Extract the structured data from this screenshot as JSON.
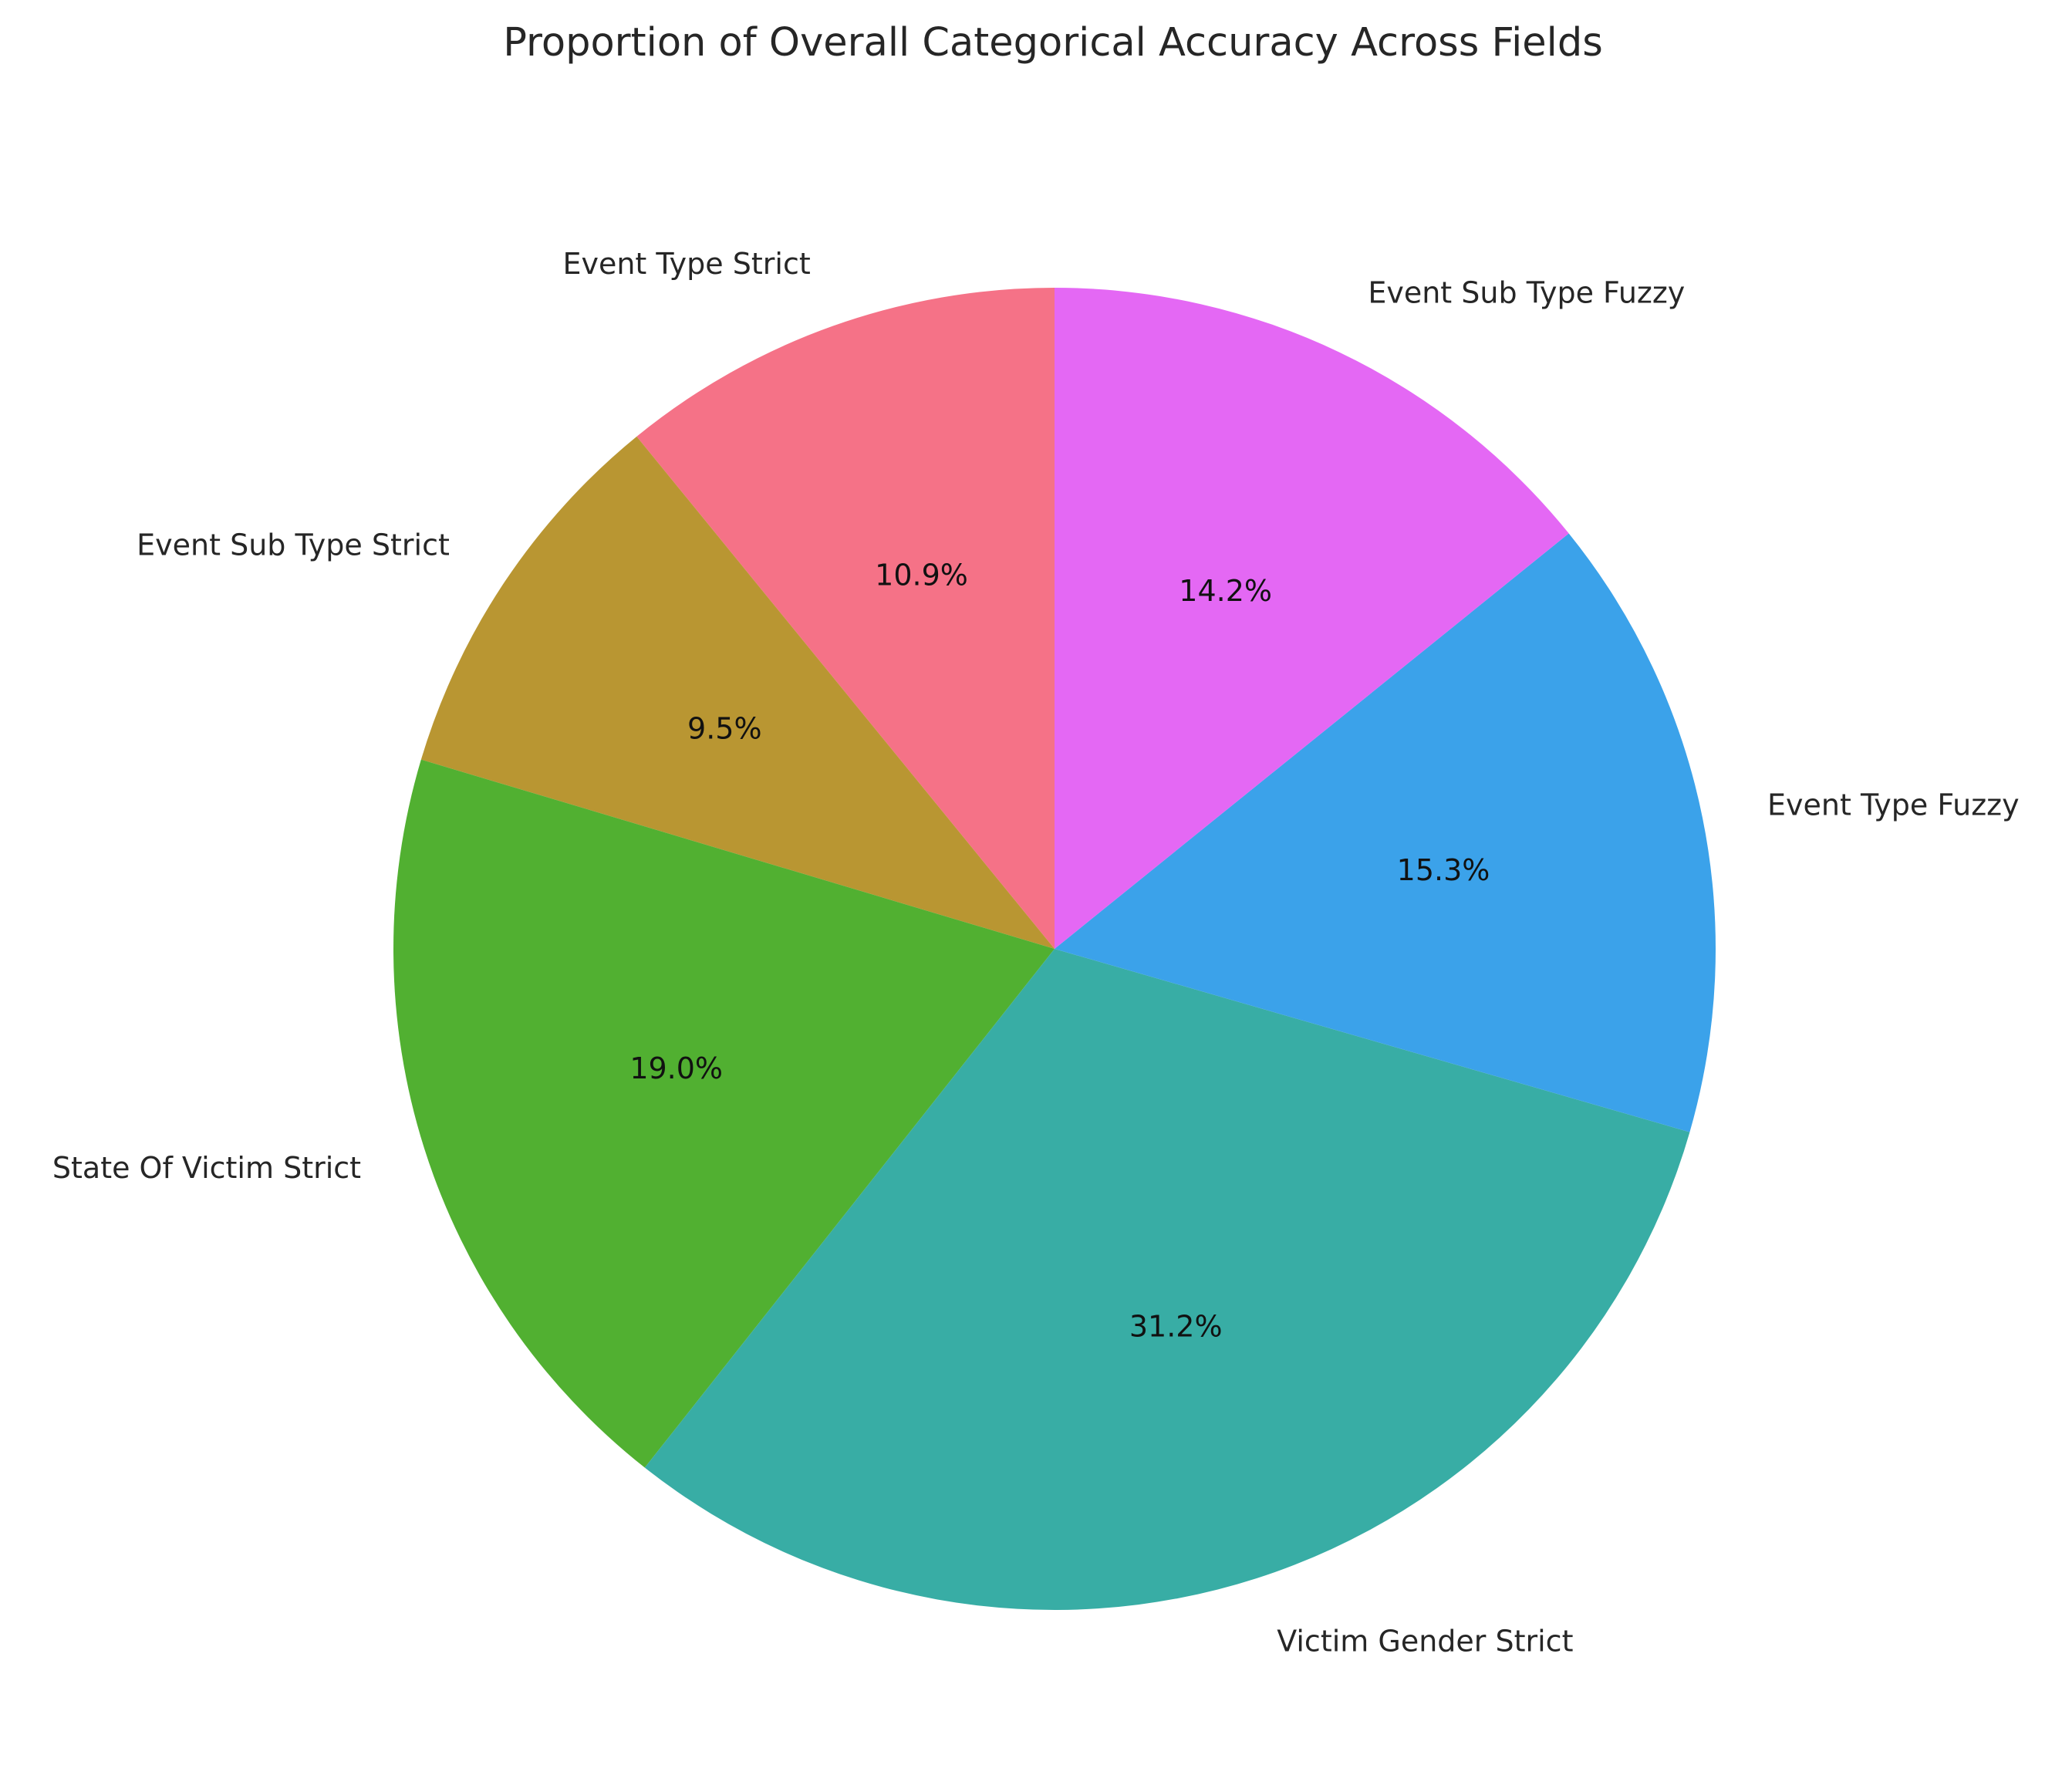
{
  "chart_data": {
    "type": "pie",
    "title": "Proportion of Overall Categorical Accuracy Across Fields",
    "start_angle_deg": 90,
    "direction": "counterclockwise",
    "slices": [
      {
        "label": "Event Type Strict",
        "value": 10.9,
        "pct_text": "10.9%",
        "color": "#f57287"
      },
      {
        "label": "Event Sub Type Strict",
        "value": 9.5,
        "pct_text": "9.5%",
        "color": "#b99632"
      },
      {
        "label": "State Of Victim Strict",
        "value": 19.0,
        "pct_text": "19.0%",
        "color": "#51b031"
      },
      {
        "label": "Victim Gender Strict",
        "value": 31.2,
        "pct_text": "31.2%",
        "color": "#38ada5"
      },
      {
        "label": "Event Type Fuzzy",
        "value": 15.3,
        "pct_text": "15.3%",
        "color": "#3ba2ea"
      },
      {
        "label": "Event Sub Type Fuzzy",
        "value": 14.2,
        "pct_text": "14.2%",
        "color": "#e468f4"
      }
    ]
  }
}
